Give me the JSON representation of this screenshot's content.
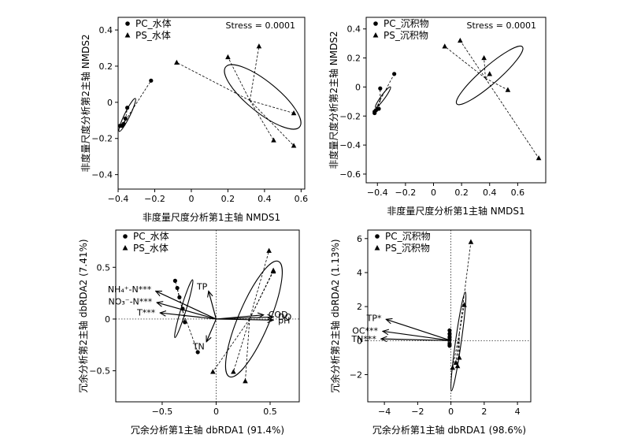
{
  "chart_data": [
    {
      "type": "scatter",
      "panel": "top-left",
      "xlabel": "非度量尺度分析第1主轴 NMDS1",
      "ylabel": "非度量尺度分析第2主轴 NMDS2",
      "annotation": "Stress = 0.0001",
      "legend_placement": "top-left",
      "grid": false,
      "xlim": [
        -0.4,
        0.62
      ],
      "ylim": [
        -0.48,
        0.47
      ],
      "xticks": [
        -0.4,
        -0.2,
        0,
        0.2,
        0.4,
        0.6
      ],
      "xtick_labels": [
        "−0.4",
        "−0.2",
        "0",
        "0.2",
        "0.4",
        "0.6"
      ],
      "yticks": [
        -0.4,
        -0.2,
        0,
        0.2,
        0.4
      ],
      "ytick_labels": [
        "−0.4",
        "−0.2",
        "0",
        "0.2",
        "0.4"
      ],
      "series": [
        {
          "name": "PC_水体",
          "marker": "circle",
          "points": [
            [
              -0.22,
              0.12
            ],
            [
              -0.35,
              -0.03
            ],
            [
              -0.36,
              -0.09
            ],
            [
              -0.37,
              -0.12
            ],
            [
              -0.38,
              -0.13
            ],
            [
              -0.39,
              -0.13
            ]
          ],
          "centroid": [
            -0.36,
            -0.1
          ],
          "ellipse": {
            "cx": -0.35,
            "cy": -0.07,
            "rx": 0.1,
            "ry": 0.015,
            "angle": 64
          }
        },
        {
          "name": "PS_水体",
          "marker": "triangle",
          "points": [
            [
              -0.08,
              0.22
            ],
            [
              0.2,
              0.25
            ],
            [
              0.37,
              0.31
            ],
            [
              0.56,
              -0.06
            ],
            [
              0.56,
              -0.24
            ],
            [
              0.45,
              -0.21
            ]
          ],
          "centroid": [
            0.32,
            0.01
          ],
          "ellipse": {
            "cx": 0.39,
            "cy": 0.03,
            "rx": 0.26,
            "ry": 0.085,
            "angle": -39
          }
        }
      ]
    },
    {
      "type": "scatter",
      "panel": "top-right",
      "xlabel": "非度量尺度分析第1主轴 NMDS1",
      "ylabel": "非度量尺度分析第2主轴 NMDS2",
      "annotation": "Stress = 0.0001",
      "legend_placement": "top-left",
      "grid": false,
      "xlim": [
        -0.48,
        0.8
      ],
      "ylim": [
        -0.66,
        0.48
      ],
      "xticks": [
        -0.4,
        -0.2,
        0,
        0.2,
        0.4,
        0.6
      ],
      "xtick_labels": [
        "−0.4",
        "−0.2",
        "0",
        "0.2",
        "0.4",
        "0.6"
      ],
      "yticks": [
        -0.6,
        -0.4,
        -0.2,
        0,
        0.2,
        0.4
      ],
      "ytick_labels": [
        "−0.6",
        "−0.4",
        "−0.2",
        "0",
        "0.2",
        "0.4"
      ],
      "series": [
        {
          "name": "PC_沉积物",
          "marker": "circle",
          "points": [
            [
              -0.28,
              0.09
            ],
            [
              -0.38,
              -0.01
            ],
            [
              -0.39,
              -0.15
            ],
            [
              -0.41,
              -0.16
            ],
            [
              -0.42,
              -0.17
            ],
            [
              -0.42,
              -0.18
            ]
          ],
          "centroid": [
            -0.38,
            -0.09
          ],
          "ellipse": {
            "cx": -0.36,
            "cy": -0.07,
            "rx": 0.09,
            "ry": 0.014,
            "angle": 54
          }
        },
        {
          "name": "PS_沉积物",
          "marker": "triangle",
          "points": [
            [
              0.08,
              0.28
            ],
            [
              0.19,
              0.32
            ],
            [
              0.36,
              0.2
            ],
            [
              0.4,
              0.09
            ],
            [
              0.53,
              -0.02
            ],
            [
              0.75,
              -0.49
            ]
          ],
          "centroid": [
            0.37,
            0.06
          ],
          "ellipse": {
            "cx": 0.4,
            "cy": 0.08,
            "rx": 0.31,
            "ry": 0.06,
            "angle": 41
          }
        }
      ]
    },
    {
      "type": "scatter",
      "panel": "bottom-left",
      "xlabel": "冗余分析第1主轴 dbRDA1 (91.4%)",
      "ylabel": "冗余分析第2主轴 dbRDA2 (7.41%)",
      "legend_placement": "top-left",
      "grid": false,
      "reference_lines": {
        "x": 0,
        "y": 0
      },
      "xlim": [
        -0.93,
        0.77
      ],
      "ylim": [
        -0.8,
        0.86
      ],
      "xticks": [
        -0.5,
        0,
        0.5
      ],
      "xtick_labels": [
        "−0.5",
        "0",
        "0.5"
      ],
      "yticks": [
        -0.5,
        0,
        0.5
      ],
      "ytick_labels": [
        "−0.5",
        "0",
        "0.5"
      ],
      "series": [
        {
          "name": "PC_水体",
          "marker": "circle",
          "points": [
            [
              -0.38,
              0.37
            ],
            [
              -0.36,
              0.3
            ],
            [
              -0.34,
              0.21
            ],
            [
              -0.31,
              0.1
            ],
            [
              -0.29,
              -0.03
            ],
            [
              -0.17,
              -0.32
            ]
          ],
          "centroid": [
            -0.31,
            0.08
          ],
          "ellipse": {
            "cx": -0.3,
            "cy": 0.1,
            "rx": 0.28,
            "ry": 0.025,
            "angle": 73
          }
        },
        {
          "name": "PS_水体",
          "marker": "triangle",
          "points": [
            [
              -0.03,
              -0.51
            ],
            [
              0.16,
              -0.51
            ],
            [
              0.27,
              -0.6
            ],
            [
              0.53,
              0.46
            ],
            [
              0.49,
              0.66
            ],
            [
              0.53,
              0.47
            ]
          ],
          "centroid": [
            0.31,
            0.0
          ],
          "ellipse": {
            "cx": 0.35,
            "cy": 0.0,
            "rx": 0.58,
            "ry": 0.15,
            "angle": 67
          }
        }
      ],
      "vectors": [
        {
          "label": "TP",
          "x": -0.07,
          "y": 0.27
        },
        {
          "label": "NH₄⁺-N***",
          "x": -0.56,
          "y": 0.27
        },
        {
          "label": "NO₃⁻-N***",
          "x": -0.55,
          "y": 0.16
        },
        {
          "label": "T***",
          "x": -0.52,
          "y": 0.06
        },
        {
          "label": "TN",
          "x": -0.09,
          "y": -0.22
        },
        {
          "label": "COD",
          "x": 0.44,
          "y": 0.04
        },
        {
          "label": "DO",
          "x": 0.53,
          "y": 0.02
        },
        {
          "label": "pH",
          "x": 0.53,
          "y": -0.01
        }
      ]
    },
    {
      "type": "scatter",
      "panel": "bottom-right",
      "xlabel": "冗余分析第1主轴 dbRDA1 (98.6%)",
      "ylabel": "冗余分析第2主轴 dbRDA2 (1.13%)",
      "legend_placement": "top-left",
      "grid": false,
      "reference_lines": {
        "x": 0,
        "y": 0
      },
      "xlim": [
        -5.0,
        4.8
      ],
      "ylim": [
        -3.6,
        6.5
      ],
      "xticks": [
        -4,
        -2,
        0,
        2,
        4
      ],
      "xtick_labels": [
        "−4",
        "−2",
        "0",
        "2",
        "4"
      ],
      "yticks": [
        -2,
        0,
        2,
        4,
        6
      ],
      "ytick_labels": [
        "−2",
        "0",
        "2",
        "4",
        "6"
      ],
      "series": [
        {
          "name": "PC_沉积物",
          "marker": "circle",
          "points": [
            [
              -0.08,
              0.6
            ],
            [
              -0.08,
              0.4
            ],
            [
              -0.08,
              0.2
            ],
            [
              -0.08,
              0.05
            ],
            [
              -0.08,
              -0.2
            ],
            [
              -0.08,
              -0.3
            ]
          ],
          "centroid": [
            -0.08,
            0.1
          ],
          "ellipse": {
            "cx": -0.08,
            "cy": 0.15,
            "rx": 0.55,
            "ry": 0.08,
            "angle": 88
          }
        },
        {
          "name": "PS_沉积物",
          "marker": "triangle",
          "points": [
            [
              1.2,
              5.8
            ],
            [
              0.8,
              2.1
            ],
            [
              0.1,
              -1.6
            ],
            [
              0.5,
              -1.0
            ],
            [
              0.3,
              -1.3
            ],
            [
              0.4,
              -1.5
            ]
          ],
          "centroid": [
            0.5,
            0.4
          ],
          "ellipse": {
            "cx": 0.45,
            "cy": -0.05,
            "rx": 3.0,
            "ry": 0.17,
            "angle": 82
          }
        }
      ],
      "vectors": [
        {
          "label": "TP*",
          "x": -3.9,
          "y": 1.25
        },
        {
          "label": "OC***",
          "x": -4.1,
          "y": 0.55
        },
        {
          "label": "TN***",
          "x": -4.2,
          "y": 0.1
        }
      ]
    }
  ]
}
